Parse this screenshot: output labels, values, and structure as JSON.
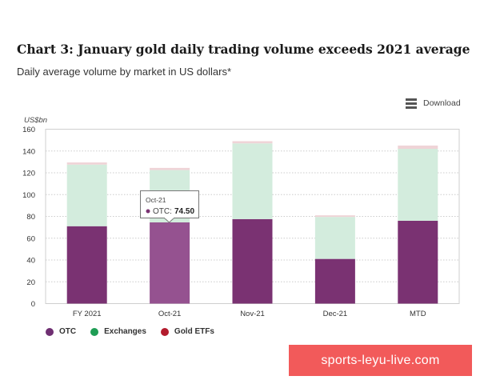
{
  "title": "Chart 3: January gold daily trading volume exceeds 2021 average",
  "subtitle": "Daily average volume by market in US dollars*",
  "download_label": "Download",
  "colors": {
    "otc": "#7a3272",
    "otc_highlight": "#955290",
    "exchanges": "#d3ecdd",
    "gold_etfs": "#efd4d7",
    "legend_otc": "#6f2f72",
    "legend_exchanges": "#1f9d55",
    "legend_gold_etfs": "#b31b2d"
  },
  "tooltip": {
    "category": "Oct-21",
    "series_label": "OTC:",
    "value_label": "74.50"
  },
  "watermark": "sports-leyu-live.com",
  "chart_data": {
    "type": "bar",
    "stacked": true,
    "title": "Chart 3: January gold daily trading volume exceeds 2021 average",
    "subtitle": "Daily average volume by market in US dollars*",
    "ylabel": "US$bn",
    "xlabel": "",
    "ylim": [
      0,
      160
    ],
    "yticks": [
      0,
      20,
      40,
      60,
      80,
      100,
      120,
      140,
      160
    ],
    "grid": true,
    "legend_position": "bottom-left",
    "categories": [
      "FY 2021",
      "Oct-21",
      "Nov-21",
      "Dec-21",
      "MTD"
    ],
    "series": [
      {
        "name": "OTC",
        "values": [
          71,
          74.5,
          77.5,
          41,
          76
        ]
      },
      {
        "name": "Exchanges",
        "values": [
          56.5,
          48,
          69.5,
          38.5,
          66
        ]
      },
      {
        "name": "Gold ETFs",
        "values": [
          2,
          2,
          2,
          1.5,
          3
        ]
      }
    ],
    "highlighted": {
      "category": "Oct-21",
      "series": "OTC"
    }
  }
}
